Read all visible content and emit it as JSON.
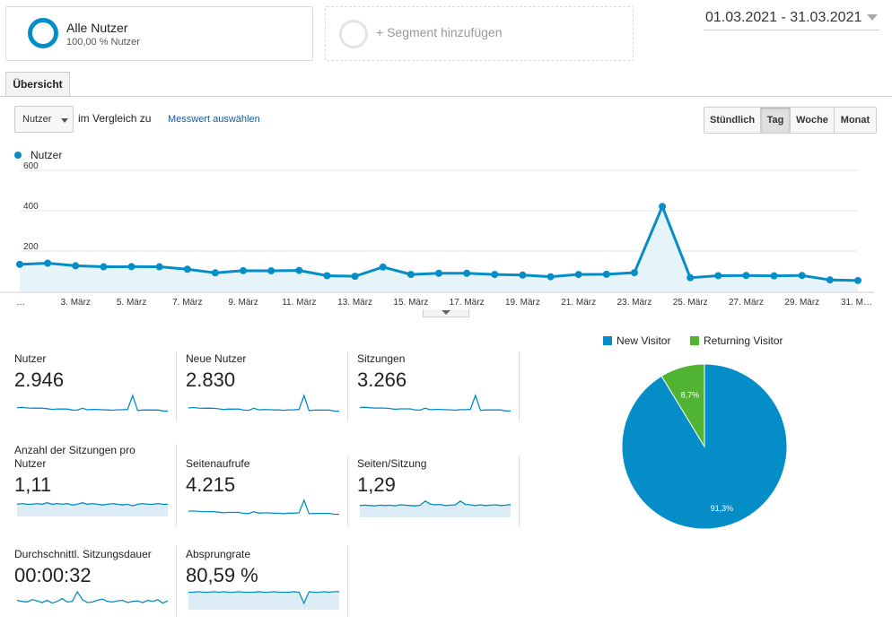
{
  "segments": {
    "active": {
      "title": "Alle Nutzer",
      "subtitle": "100,00 % Nutzer"
    },
    "add_label": "+ Segment hinzufügen"
  },
  "date_range": "01.03.2021 - 31.03.2021",
  "tabs": [
    {
      "label": "Übersicht"
    }
  ],
  "controls": {
    "metric_select": "Nutzer",
    "compare_label": "im Vergleich zu",
    "metric_link": "Messwert auswählen",
    "periods": [
      "Stündlich",
      "Tag",
      "Woche",
      "Monat"
    ],
    "active_period": "Tag"
  },
  "colors": {
    "primary": "#058dc7",
    "secondary": "#50b432",
    "area_fill": "#e6f3f9"
  },
  "chart_data": [
    {
      "type": "line",
      "series": [
        {
          "name": "Nutzer",
          "values": [
            134,
            140,
            127,
            122,
            123,
            122,
            110,
            92,
            103,
            102,
            104,
            78,
            75,
            121,
            84,
            90,
            90,
            84,
            81,
            73,
            84,
            85,
            93,
            421,
            68,
            78,
            79,
            77,
            79,
            57,
            54
          ]
        }
      ],
      "x": [
        1,
        2,
        3,
        4,
        5,
        6,
        7,
        8,
        9,
        10,
        11,
        12,
        13,
        14,
        15,
        16,
        17,
        18,
        19,
        20,
        21,
        22,
        23,
        24,
        25,
        26,
        27,
        28,
        29,
        30,
        31
      ],
      "x_tick_labels": [
        "…",
        "3. März",
        "5. März",
        "7. März",
        "9. März",
        "11. März",
        "13. März",
        "15. März",
        "17. März",
        "19. März",
        "21. März",
        "23. März",
        "25. März",
        "27. März",
        "29. März",
        "31. M…"
      ],
      "y_ticks": [
        "600",
        "400",
        "200"
      ],
      "ylim": [
        0,
        600
      ],
      "grid": true
    },
    {
      "type": "pie",
      "labels": [
        "New Visitor",
        "Returning Visitor"
      ],
      "values": [
        91.3,
        8.7
      ],
      "data_labels": [
        "91,3%",
        "8,7%"
      ],
      "colors": [
        "#058dc7",
        "#50b432"
      ],
      "legend": "top"
    }
  ],
  "scorecards": [
    {
      "title": "Nutzer",
      "value": "2.946"
    },
    {
      "title": "Neue Nutzer",
      "value": "2.830"
    },
    {
      "title": "Sitzungen",
      "value": "3.266"
    },
    {
      "title": "Anzahl der Sitzungen pro Nutzer",
      "value": "1,11"
    },
    {
      "title": "Seitenaufrufe",
      "value": "4.215"
    },
    {
      "title": "Seiten/Sitzung",
      "value": "1,29"
    },
    {
      "title": "Durchschnittl. Sitzungsdauer",
      "value": "00:00:32"
    },
    {
      "title": "Absprungrate",
      "value": "80,59 %"
    }
  ],
  "sparklines": {
    "nutzer": [
      134,
      140,
      127,
      122,
      123,
      122,
      110,
      92,
      103,
      102,
      104,
      78,
      75,
      121,
      84,
      90,
      90,
      84,
      81,
      73,
      84,
      85,
      93,
      421,
      68,
      78,
      79,
      77,
      79,
      57,
      54
    ],
    "neue": [
      126,
      133,
      121,
      116,
      118,
      115,
      104,
      87,
      98,
      96,
      100,
      73,
      70,
      116,
      80,
      86,
      85,
      80,
      77,
      69,
      80,
      81,
      88,
      410,
      64,
      74,
      75,
      73,
      75,
      53,
      50
    ],
    "sitzungen": [
      146,
      153,
      139,
      133,
      135,
      133,
      121,
      101,
      113,
      112,
      114,
      86,
      82,
      132,
      92,
      99,
      99,
      92,
      89,
      80,
      92,
      93,
      102,
      452,
      75,
      86,
      87,
      85,
      87,
      63,
      59
    ],
    "pro_nutzer": [
      1.1,
      1.11,
      1.1,
      1.1,
      1.11,
      1.1,
      1.12,
      1.1,
      1.11,
      1.1,
      1.11,
      1.09,
      1.1,
      1.12,
      1.1,
      1.11,
      1.1,
      1.09,
      1.1,
      1.11,
      1.1,
      1.09,
      1.1,
      1.08,
      1.1,
      1.11,
      1.1,
      1.1,
      1.11,
      1.1,
      1.1
    ],
    "seitenaufrufe": [
      182,
      190,
      172,
      166,
      168,
      166,
      150,
      126,
      142,
      140,
      142,
      106,
      102,
      165,
      114,
      124,
      124,
      114,
      110,
      100,
      115,
      116,
      127,
      560,
      93,
      106,
      108,
      105,
      108,
      78,
      74
    ],
    "seiten_sitzung": [
      1.24,
      1.25,
      1.24,
      1.23,
      1.25,
      1.24,
      1.25,
      1.23,
      1.26,
      1.25,
      1.24,
      1.23,
      1.25,
      1.36,
      1.28,
      1.26,
      1.27,
      1.24,
      1.25,
      1.26,
      1.36,
      1.27,
      1.26,
      1.24,
      1.26,
      1.24,
      1.25,
      1.26,
      1.24,
      1.25,
      1.27
    ],
    "dauer": [
      30,
      28,
      27,
      31,
      29,
      26,
      30,
      25,
      28,
      33,
      27,
      28,
      45,
      31,
      26,
      27,
      30,
      32,
      28,
      27,
      29,
      30,
      26,
      28,
      29,
      26,
      30,
      28,
      31,
      25,
      29
    ],
    "absprung": [
      80,
      80,
      81,
      80,
      80,
      81,
      80,
      81,
      80,
      80,
      81,
      80,
      80,
      80,
      81,
      80,
      80,
      81,
      80,
      80,
      80,
      81,
      80,
      60,
      81,
      80,
      80,
      81,
      80,
      81,
      81
    ]
  }
}
